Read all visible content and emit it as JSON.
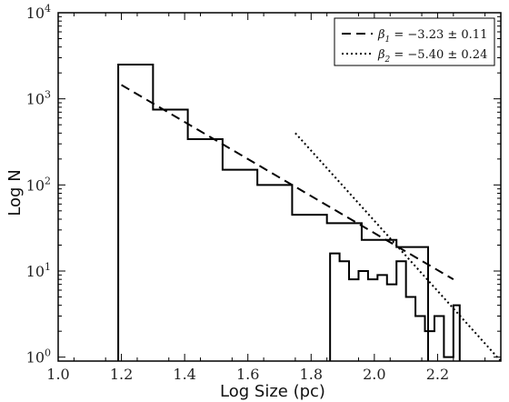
{
  "chart_data": {
    "type": "line",
    "xlabel": "Log Size (pc)",
    "ylabel": "Log N",
    "xlim": [
      1.0,
      2.4
    ],
    "ylim": [
      0.9,
      10000
    ],
    "yscale": "log",
    "x_ticks": [
      1.0,
      1.2,
      1.4,
      1.6,
      1.8,
      2.0,
      2.2
    ],
    "x_tick_labels": [
      "1.0",
      "1.2",
      "1.4",
      "1.6",
      "1.8",
      "2.0",
      "2.2"
    ],
    "y_ticks": [
      1,
      10,
      100,
      1000,
      10000
    ],
    "y_tick_labels": [
      {
        "base": "10",
        "exp": "0"
      },
      {
        "base": "10",
        "exp": "1"
      },
      {
        "base": "10",
        "exp": "2"
      },
      {
        "base": "10",
        "exp": "3"
      },
      {
        "base": "10",
        "exp": "4"
      }
    ],
    "grid": false,
    "legend_position": "top-right",
    "histograms": [
      {
        "edges": [
          1.19,
          1.3,
          1.41,
          1.52,
          1.63,
          1.74,
          1.85,
          1.96,
          2.07,
          2.17
        ],
        "counts": [
          2500,
          750,
          340,
          150,
          100,
          45,
          36,
          23,
          19
        ]
      },
      {
        "edges": [
          1.86,
          1.89,
          1.92,
          1.95,
          1.98,
          2.01,
          2.04,
          2.07,
          2.1,
          2.13,
          2.16,
          2.19,
          2.22,
          2.25,
          2.27
        ],
        "counts": [
          16,
          13,
          8,
          10,
          8,
          9,
          7,
          13,
          5,
          3,
          2,
          3,
          1,
          4
        ]
      }
    ],
    "fits": [
      {
        "label_main": "β",
        "label_sub": "1",
        "label_rest": " = −3.23 ± 0.11",
        "style": "dashed",
        "x": [
          1.2,
          2.25
        ],
        "y": [
          1450,
          8
        ]
      },
      {
        "label_main": "β",
        "label_sub": "2",
        "label_rest": " = −5.40 ± 0.24",
        "style": "dotted",
        "x": [
          1.75,
          2.4
        ],
        "y": [
          400,
          0.9
        ]
      }
    ]
  }
}
